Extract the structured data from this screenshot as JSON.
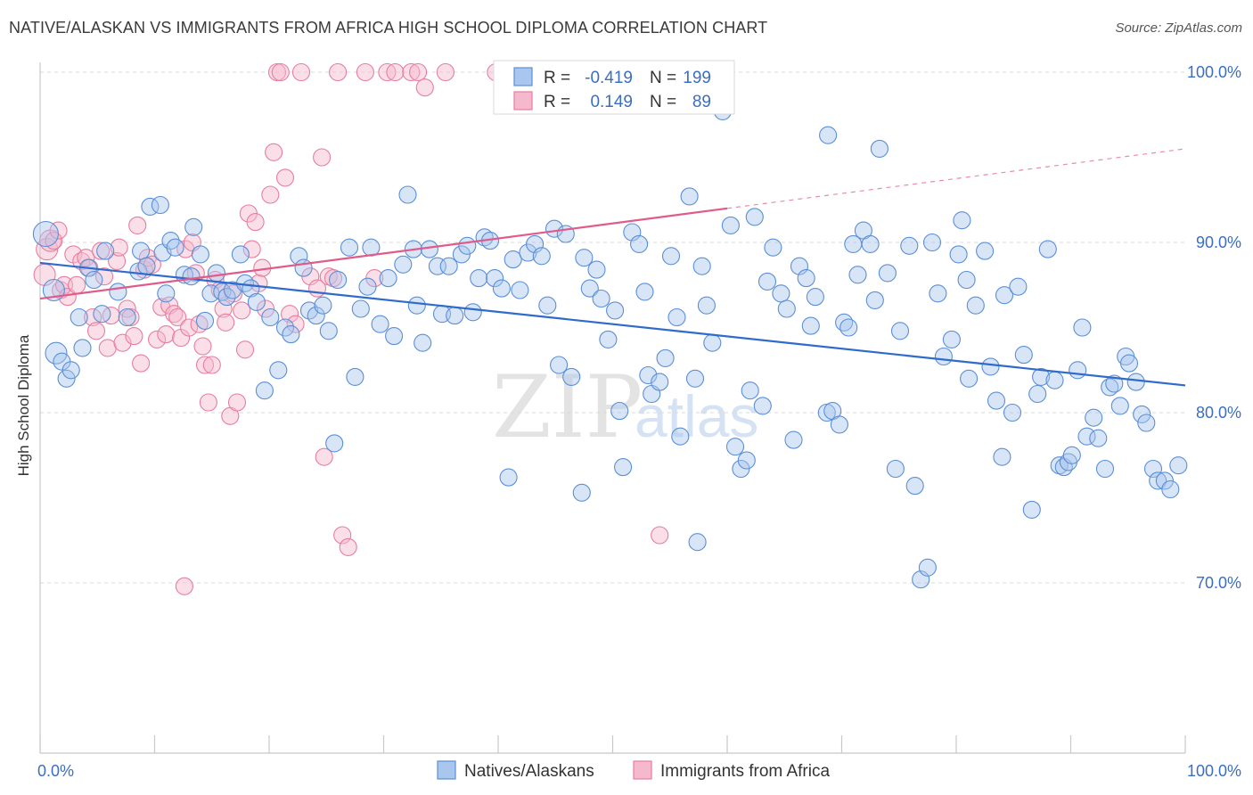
{
  "header": {
    "title": "NATIVE/ALASKAN VS IMMIGRANTS FROM AFRICA HIGH SCHOOL DIPLOMA CORRELATION CHART",
    "source": "Source: ZipAtlas.com"
  },
  "watermark": {
    "zip": "ZIP",
    "atlas": "atlas"
  },
  "colors": {
    "blue_fill": "#a9c6ee",
    "blue_stroke": "#5b8fd6",
    "blue_line": "#2f6bcb",
    "pink_fill": "#f6b8cc",
    "pink_stroke": "#e67ea0",
    "pink_line": "#e05a8a",
    "tick_text": "#3b6ec2",
    "grid": "#d9d9d9"
  },
  "chart_data": {
    "type": "scatter",
    "title": "NATIVE/ALASKAN VS IMMIGRANTS FROM AFRICA HIGH SCHOOL DIPLOMA CORRELATION CHART",
    "xlabel": "",
    "ylabel": "High School Diploma",
    "xlim": [
      0,
      100
    ],
    "ylim": [
      60,
      102
    ],
    "x_tick_labels": [
      "0.0%",
      "100.0%"
    ],
    "y_ticks": [
      70,
      80,
      90,
      100
    ],
    "y_tick_labels": [
      "70.0%",
      "80.0%",
      "90.0%",
      "100.0%"
    ],
    "grid": true,
    "legend_position": "top-center",
    "legend": {
      "series": [
        {
          "r_label": "R =",
          "r_value": "-0.419",
          "n_label": "N =",
          "n_value": "199"
        },
        {
          "r_label": "R =",
          "r_value": "0.149",
          "n_label": "N =",
          "n_value": "89"
        }
      ]
    },
    "bottom_legend": [
      "Natives/Alaskans",
      "Immigrants from Africa"
    ],
    "series": [
      {
        "name": "Natives/Alaskans",
        "color": "#a9c6ee",
        "trend": {
          "x": [
            0,
            100
          ],
          "y": [
            88.8,
            81.6
          ]
        },
        "points": [
          [
            0.5,
            90.5
          ],
          [
            1.2,
            87.2
          ],
          [
            1.4,
            83.5
          ],
          [
            1.9,
            83.0
          ],
          [
            2.3,
            82.0
          ],
          [
            2.7,
            82.5
          ],
          [
            3.4,
            85.6
          ],
          [
            3.7,
            83.8
          ],
          [
            4.2,
            88.5
          ],
          [
            4.7,
            87.8
          ],
          [
            5.4,
            85.8
          ],
          [
            5.7,
            89.5
          ],
          [
            6.8,
            87.1
          ],
          [
            7.6,
            85.6
          ],
          [
            8.6,
            88.3
          ],
          [
            8.8,
            89.5
          ],
          [
            9.3,
            88.6
          ],
          [
            9.6,
            92.1
          ],
          [
            10.5,
            92.2
          ],
          [
            10.7,
            89.4
          ],
          [
            11.0,
            87.0
          ],
          [
            11.4,
            90.1
          ],
          [
            11.8,
            89.7
          ],
          [
            12.6,
            88.1
          ],
          [
            13.2,
            88.0
          ],
          [
            13.4,
            90.9
          ],
          [
            14.0,
            89.3
          ],
          [
            14.4,
            85.4
          ],
          [
            14.9,
            87.0
          ],
          [
            15.4,
            88.2
          ],
          [
            15.9,
            87.1
          ],
          [
            16.3,
            86.8
          ],
          [
            16.8,
            87.2
          ],
          [
            17.5,
            89.3
          ],
          [
            17.9,
            87.6
          ],
          [
            18.4,
            87.3
          ],
          [
            18.9,
            86.5
          ],
          [
            19.6,
            81.3
          ],
          [
            20.1,
            85.6
          ],
          [
            20.8,
            82.5
          ],
          [
            21.4,
            85.0
          ],
          [
            21.9,
            84.6
          ],
          [
            22.6,
            89.2
          ],
          [
            23.0,
            88.5
          ],
          [
            23.5,
            86.0
          ],
          [
            24.1,
            85.7
          ],
          [
            24.7,
            86.3
          ],
          [
            25.2,
            84.8
          ],
          [
            25.7,
            78.2
          ],
          [
            26.0,
            87.8
          ],
          [
            27.0,
            89.7
          ],
          [
            27.5,
            82.1
          ],
          [
            28.0,
            86.1
          ],
          [
            28.6,
            87.4
          ],
          [
            28.9,
            89.7
          ],
          [
            29.7,
            85.2
          ],
          [
            30.4,
            87.9
          ],
          [
            30.9,
            84.5
          ],
          [
            31.7,
            88.7
          ],
          [
            32.1,
            92.8
          ],
          [
            32.6,
            89.6
          ],
          [
            32.9,
            86.3
          ],
          [
            33.4,
            84.1
          ],
          [
            34.0,
            89.6
          ],
          [
            34.7,
            88.6
          ],
          [
            35.1,
            85.8
          ],
          [
            35.7,
            88.6
          ],
          [
            36.2,
            85.7
          ],
          [
            36.8,
            89.3
          ],
          [
            37.3,
            89.8
          ],
          [
            37.8,
            85.9
          ],
          [
            38.3,
            87.9
          ],
          [
            38.8,
            90.3
          ],
          [
            39.3,
            90.1
          ],
          [
            39.7,
            87.9
          ],
          [
            40.3,
            87.3
          ],
          [
            40.9,
            76.2
          ],
          [
            41.3,
            89.0
          ],
          [
            41.9,
            87.2
          ],
          [
            42.6,
            89.4
          ],
          [
            43.2,
            89.9
          ],
          [
            43.8,
            89.2
          ],
          [
            44.3,
            86.3
          ],
          [
            44.9,
            90.8
          ],
          [
            45.3,
            82.8
          ],
          [
            45.9,
            90.5
          ],
          [
            46.4,
            82.1
          ],
          [
            47.3,
            75.3
          ],
          [
            47.5,
            89.1
          ],
          [
            48.0,
            87.3
          ],
          [
            48.6,
            88.4
          ],
          [
            49.0,
            86.7
          ],
          [
            49.6,
            84.3
          ],
          [
            50.2,
            86.0
          ],
          [
            50.6,
            80.1
          ],
          [
            50.9,
            76.8
          ],
          [
            51.7,
            90.6
          ],
          [
            52.3,
            89.9
          ],
          [
            52.8,
            87.1
          ],
          [
            53.1,
            82.2
          ],
          [
            53.4,
            81.1
          ],
          [
            54.1,
            81.8
          ],
          [
            54.6,
            83.2
          ],
          [
            55.1,
            89.2
          ],
          [
            55.6,
            85.6
          ],
          [
            55.9,
            78.6
          ],
          [
            56.7,
            92.7
          ],
          [
            57.2,
            82.0
          ],
          [
            57.4,
            72.4
          ],
          [
            57.8,
            88.6
          ],
          [
            58.2,
            86.3
          ],
          [
            58.7,
            84.1
          ],
          [
            59.6,
            97.7
          ],
          [
            60.3,
            91.0
          ],
          [
            60.7,
            78.0
          ],
          [
            61.2,
            76.7
          ],
          [
            61.7,
            77.2
          ],
          [
            62.0,
            81.3
          ],
          [
            62.4,
            91.5
          ],
          [
            63.1,
            80.4
          ],
          [
            63.5,
            87.7
          ],
          [
            64.0,
            89.7
          ],
          [
            64.7,
            87.0
          ],
          [
            65.2,
            86.1
          ],
          [
            65.8,
            78.4
          ],
          [
            66.3,
            88.6
          ],
          [
            66.9,
            87.9
          ],
          [
            67.3,
            85.1
          ],
          [
            67.7,
            86.8
          ],
          [
            68.7,
            80.0
          ],
          [
            68.8,
            96.3
          ],
          [
            69.2,
            80.1
          ],
          [
            69.8,
            79.3
          ],
          [
            70.2,
            85.3
          ],
          [
            70.6,
            85.0
          ],
          [
            71.0,
            89.9
          ],
          [
            71.4,
            88.1
          ],
          [
            71.9,
            90.7
          ],
          [
            72.5,
            89.9
          ],
          [
            72.9,
            86.6
          ],
          [
            73.3,
            95.5
          ],
          [
            74.0,
            88.2
          ],
          [
            74.7,
            76.7
          ],
          [
            75.1,
            84.8
          ],
          [
            75.9,
            89.8
          ],
          [
            76.4,
            75.7
          ],
          [
            76.9,
            70.2
          ],
          [
            77.5,
            70.9
          ],
          [
            77.9,
            90.0
          ],
          [
            78.4,
            87.0
          ],
          [
            78.9,
            83.3
          ],
          [
            79.6,
            84.3
          ],
          [
            80.2,
            89.3
          ],
          [
            80.5,
            91.3
          ],
          [
            80.9,
            87.8
          ],
          [
            81.1,
            82.0
          ],
          [
            81.7,
            86.3
          ],
          [
            82.5,
            89.5
          ],
          [
            83.0,
            82.7
          ],
          [
            83.5,
            80.7
          ],
          [
            84.0,
            77.4
          ],
          [
            84.2,
            86.9
          ],
          [
            84.9,
            80.0
          ],
          [
            85.4,
            87.4
          ],
          [
            85.9,
            83.4
          ],
          [
            86.6,
            74.3
          ],
          [
            87.1,
            81.1
          ],
          [
            87.4,
            82.1
          ],
          [
            88.0,
            89.6
          ],
          [
            88.6,
            81.9
          ],
          [
            89.0,
            76.9
          ],
          [
            89.4,
            76.8
          ],
          [
            89.8,
            77.1
          ],
          [
            90.1,
            77.5
          ],
          [
            90.6,
            82.5
          ],
          [
            91.0,
            85.0
          ],
          [
            91.4,
            78.6
          ],
          [
            92.0,
            79.7
          ],
          [
            92.4,
            78.5
          ],
          [
            93.0,
            76.7
          ],
          [
            93.4,
            81.5
          ],
          [
            93.8,
            81.7
          ],
          [
            94.3,
            80.4
          ],
          [
            94.8,
            83.3
          ],
          [
            95.1,
            82.9
          ],
          [
            95.7,
            81.8
          ],
          [
            96.2,
            79.9
          ],
          [
            96.6,
            79.4
          ],
          [
            97.2,
            76.7
          ],
          [
            97.6,
            76.0
          ],
          [
            98.2,
            76.0
          ],
          [
            98.7,
            75.5
          ],
          [
            99.4,
            76.9
          ]
        ]
      },
      {
        "name": "Immigrants from Africa",
        "color": "#f6b8cc",
        "trend": {
          "x": [
            0,
            60
          ],
          "y": [
            86.7,
            92.0
          ]
        },
        "trend_extension": {
          "x": [
            60,
            100
          ],
          "y": [
            92.0,
            95.5
          ]
        },
        "points": [
          [
            0.4,
            88.1
          ],
          [
            0.6,
            89.6
          ],
          [
            0.9,
            90.1
          ],
          [
            1.2,
            90.1
          ],
          [
            1.6,
            90.7
          ],
          [
            1.8,
            87.2
          ],
          [
            2.1,
            87.5
          ],
          [
            2.4,
            86.8
          ],
          [
            2.9,
            89.3
          ],
          [
            3.2,
            87.5
          ],
          [
            3.6,
            88.9
          ],
          [
            4.0,
            89.1
          ],
          [
            4.3,
            88.5
          ],
          [
            4.6,
            85.6
          ],
          [
            4.9,
            84.8
          ],
          [
            5.3,
            89.5
          ],
          [
            5.6,
            88.0
          ],
          [
            5.9,
            83.8
          ],
          [
            6.2,
            85.7
          ],
          [
            6.7,
            88.9
          ],
          [
            6.9,
            89.7
          ],
          [
            7.2,
            84.1
          ],
          [
            7.6,
            86.1
          ],
          [
            7.9,
            85.6
          ],
          [
            8.2,
            84.5
          ],
          [
            8.5,
            91.0
          ],
          [
            8.8,
            82.9
          ],
          [
            9.1,
            88.4
          ],
          [
            9.4,
            89.1
          ],
          [
            9.8,
            88.7
          ],
          [
            10.2,
            84.3
          ],
          [
            10.6,
            86.2
          ],
          [
            11.0,
            84.6
          ],
          [
            11.3,
            86.3
          ],
          [
            11.7,
            85.8
          ],
          [
            12.0,
            85.6
          ],
          [
            12.3,
            84.4
          ],
          [
            12.7,
            89.6
          ],
          [
            13.0,
            85.0
          ],
          [
            13.3,
            90.0
          ],
          [
            13.6,
            88.2
          ],
          [
            13.9,
            85.2
          ],
          [
            14.2,
            83.9
          ],
          [
            14.4,
            82.8
          ],
          [
            14.7,
            80.6
          ],
          [
            15.0,
            82.8
          ],
          [
            15.3,
            87.8
          ],
          [
            15.7,
            87.2
          ],
          [
            16.0,
            86.1
          ],
          [
            16.2,
            85.3
          ],
          [
            16.6,
            79.8
          ],
          [
            16.9,
            87.0
          ],
          [
            17.2,
            80.6
          ],
          [
            17.6,
            86.0
          ],
          [
            17.9,
            83.7
          ],
          [
            18.2,
            91.7
          ],
          [
            18.5,
            89.6
          ],
          [
            18.8,
            91.2
          ],
          [
            19.1,
            87.6
          ],
          [
            19.4,
            88.5
          ],
          [
            19.7,
            86.1
          ],
          [
            20.1,
            92.8
          ],
          [
            20.4,
            95.3
          ],
          [
            20.7,
            100.0
          ],
          [
            21.0,
            100.0
          ],
          [
            21.4,
            93.8
          ],
          [
            21.8,
            85.8
          ],
          [
            22.3,
            85.2
          ],
          [
            22.8,
            100.0
          ],
          [
            23.6,
            88.0
          ],
          [
            24.2,
            87.3
          ],
          [
            24.6,
            95.0
          ],
          [
            24.8,
            77.4
          ],
          [
            25.2,
            88.0
          ],
          [
            25.6,
            87.9
          ],
          [
            26.0,
            100.0
          ],
          [
            26.4,
            72.8
          ],
          [
            26.9,
            72.1
          ],
          [
            28.4,
            100.0
          ],
          [
            29.2,
            87.9
          ],
          [
            30.3,
            100.0
          ],
          [
            31.0,
            100.0
          ],
          [
            32.4,
            100.0
          ],
          [
            33.0,
            100.0
          ],
          [
            33.6,
            99.1
          ],
          [
            35.4,
            100.0
          ],
          [
            39.8,
            100.0
          ],
          [
            54.1,
            72.8
          ],
          [
            12.6,
            69.8
          ]
        ]
      }
    ]
  }
}
